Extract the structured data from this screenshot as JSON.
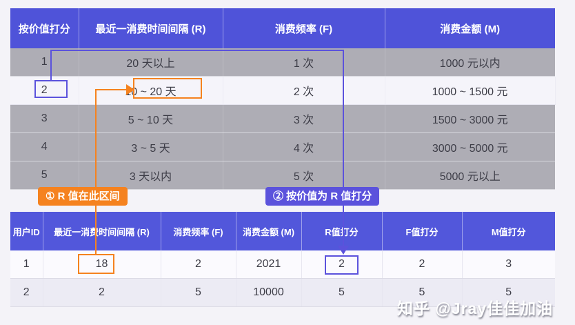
{
  "colors": {
    "header_purple": "#4F53D9",
    "annotation_purple": "#5B52DC",
    "annotation_orange": "#F5821F",
    "gray_row": "#AEADB5",
    "page_background": "#F4F3F8"
  },
  "score_table": {
    "headers": [
      "按价值打分",
      "最近一消费时间间隔 (R)",
      "消费频率 (F)",
      "消费金额 (M)"
    ],
    "rows": [
      [
        "1",
        "20 天以上",
        "1 次",
        "1000 元以内"
      ],
      [
        "2",
        "10 ~ 20 天",
        "2 次",
        "1000 ~ 1500 元"
      ],
      [
        "3",
        "5 ~ 10 天",
        "3 次",
        "1500 ~ 3000 元"
      ],
      [
        "4",
        "3 ~ 5 天",
        "4 次",
        "3000 ~ 5000 元"
      ],
      [
        "5",
        "3 天以内",
        "5 次",
        "5000 元以上"
      ]
    ]
  },
  "annotations": {
    "step1_label": "① R 值在此区间",
    "step2_label": "② 按价值为 R 值打分"
  },
  "user_table": {
    "headers": [
      "用户ID",
      "最近一消费时间间隔 (R)",
      "消费频率 (F)",
      "消费金额 (M)",
      "R值打分",
      "F值打分",
      "M值打分"
    ],
    "rows": [
      [
        "1",
        "18",
        "2",
        "2021",
        "2",
        "2",
        "3"
      ],
      [
        "2",
        "2",
        "5",
        "10000",
        "5",
        "5",
        "5"
      ]
    ]
  },
  "watermark": {
    "text": "知乎 @Jray佳佳加油"
  }
}
